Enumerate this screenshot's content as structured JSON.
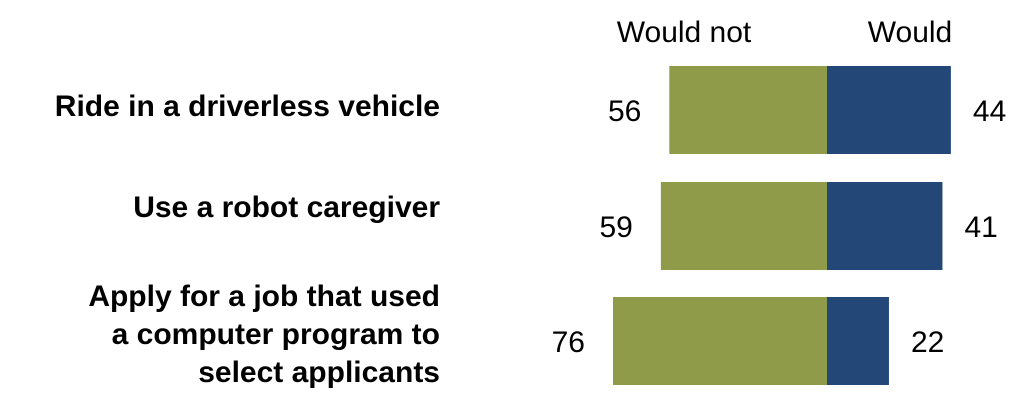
{
  "chart_data": {
    "type": "bar",
    "orientation": "horizontal",
    "stacked": "diverging",
    "categories": [
      [
        "Ride in a driverless vehicle"
      ],
      [
        "Use a robot caregiver"
      ],
      [
        "Apply for a job that used",
        "a computer program to",
        "select applicants"
      ]
    ],
    "series": [
      {
        "name": "Would not",
        "values": [
          56,
          59,
          76
        ],
        "color": "#8f9b48"
      },
      {
        "name": "Would",
        "values": [
          44,
          41,
          22
        ],
        "color": "#234878"
      }
    ],
    "legend_placement": "top"
  }
}
